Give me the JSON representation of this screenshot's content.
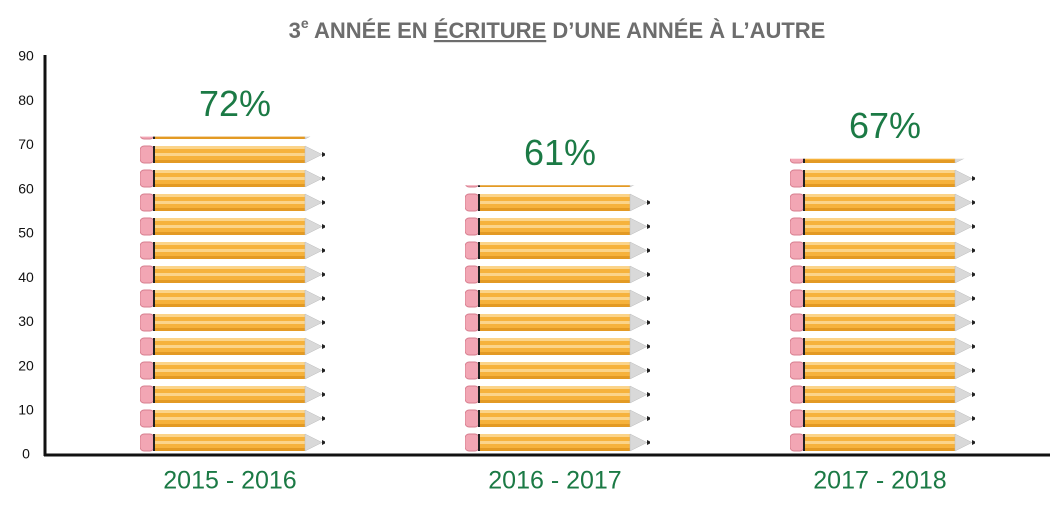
{
  "chart_data": {
    "type": "bar",
    "title": [
      "3",
      "e",
      " ANNÉE EN ",
      "ÉCRITURE",
      " D’UNE ANNÉE À L’AUTRE"
    ],
    "categories": [
      "2015 - 2016",
      "2016 - 2017",
      "2017 - 2018"
    ],
    "values": [
      72,
      61,
      67
    ],
    "value_labels": [
      "72%",
      "61%",
      "67%"
    ],
    "ylim": [
      0,
      90
    ],
    "yticks": [
      0,
      10,
      20,
      30,
      40,
      50,
      60,
      70,
      80,
      90
    ],
    "color": "#f6b23c",
    "grid": false
  }
}
